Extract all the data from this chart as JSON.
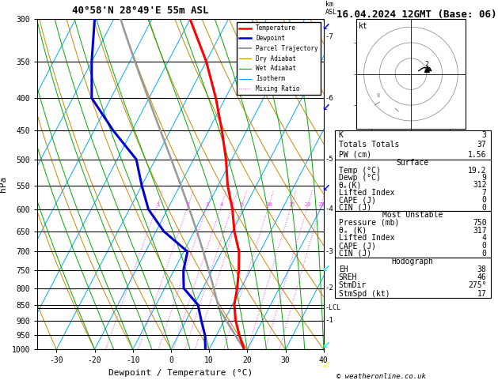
{
  "title_left": "40°58'N 28°49'E 55m ASL",
  "title_right": "16.04.2024 12GMT (Base: 06)",
  "xlabel": "Dewpoint / Temperature (°C)",
  "ylabel_left": "hPa",
  "temp_color": "#FF0000",
  "dewp_color": "#0000CC",
  "parcel_color": "#999999",
  "dry_adiabat_color": "#CC8800",
  "wet_adiabat_color": "#00AA00",
  "isotherm_color": "#00AAFF",
  "mixing_ratio_color": "#FF44FF",
  "info_K": "3",
  "info_TT": "37",
  "info_PW": "1.56",
  "info_surf_temp": "19.2",
  "info_surf_dewp": "9",
  "info_surf_theta": "312",
  "info_surf_li": "7",
  "info_surf_cape": "0",
  "info_surf_cin": "0",
  "info_mu_pressure": "750",
  "info_mu_theta": "317",
  "info_mu_li": "4",
  "info_mu_cape": "0",
  "info_mu_cin": "0",
  "info_hodo_EH": "38",
  "info_hodo_SREH": "46",
  "info_hodo_stmdir": "275°",
  "info_hodo_stmspd": "17"
}
